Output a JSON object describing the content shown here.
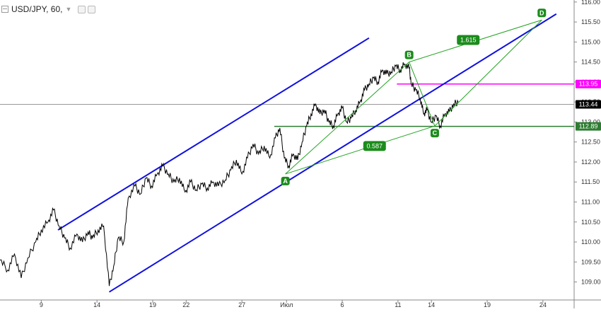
{
  "header": {
    "symbol_label": "USD/JPY, 60,"
  },
  "colors": {
    "price": "#000000",
    "channel": "#1010e0",
    "harmonic": "#22a322",
    "resistance": "#ff00ff",
    "support": "#2e7d32",
    "current": "#999999",
    "point_badge": "#1b8c1b"
  },
  "chart_data": {
    "type": "line",
    "title": "USD/JPY, 60,",
    "ylim": [
      108.55,
      116.05
    ],
    "y_ticks": [
      109.0,
      109.5,
      110.0,
      110.5,
      111.0,
      111.5,
      112.0,
      112.5,
      113.0,
      113.5,
      114.0,
      114.5,
      115.0,
      115.5,
      116.0
    ],
    "y_tick_labels": [
      "109.00",
      "109.50",
      "110.00",
      "110.50",
      "111.00",
      "111.50",
      "112.00",
      "112.50",
      "113.00",
      "113.50",
      "114.00",
      "114.50",
      "115.00",
      "115.50",
      "116.00"
    ],
    "x_tick_labels": [
      {
        "label": "9",
        "day": 9
      },
      {
        "label": "14",
        "day": 14
      },
      {
        "label": "19",
        "day": 19
      },
      {
        "label": "22",
        "day": 22
      },
      {
        "label": "27",
        "day": 27
      },
      {
        "label": "Июл",
        "day": 31
      },
      {
        "label": "6",
        "day": 36
      },
      {
        "label": "11",
        "day": 41
      },
      {
        "label": "14",
        "day": 44
      },
      {
        "label": "19",
        "day": 49
      },
      {
        "label": "24",
        "day": 54
      }
    ],
    "xlim": [
      5.3,
      56.8
    ],
    "series": [
      {
        "points": [
          [
            5.3,
            109.55
          ],
          [
            6.0,
            109.3
          ],
          [
            6.6,
            109.7
          ],
          [
            7.2,
            109.1
          ],
          [
            7.8,
            109.6
          ],
          [
            8.5,
            110.0
          ],
          [
            9.0,
            110.3
          ],
          [
            9.6,
            110.5
          ],
          [
            10.1,
            110.8
          ],
          [
            10.6,
            110.4
          ],
          [
            11.1,
            110.1
          ],
          [
            11.6,
            109.85
          ],
          [
            12.2,
            110.2
          ],
          [
            12.7,
            110.0
          ],
          [
            13.2,
            110.25
          ],
          [
            13.6,
            110.1
          ],
          [
            14.1,
            110.3
          ],
          [
            14.6,
            110.4
          ],
          [
            15.1,
            108.9
          ],
          [
            15.5,
            109.4
          ],
          [
            15.9,
            110.1
          ],
          [
            16.4,
            110.0
          ],
          [
            16.8,
            111.1
          ],
          [
            17.4,
            111.4
          ],
          [
            17.9,
            111.2
          ],
          [
            18.4,
            111.6
          ],
          [
            18.9,
            111.4
          ],
          [
            19.4,
            111.7
          ],
          [
            19.9,
            111.9
          ],
          [
            20.4,
            111.7
          ],
          [
            20.9,
            111.5
          ],
          [
            21.4,
            111.6
          ],
          [
            21.9,
            111.25
          ],
          [
            22.4,
            111.5
          ],
          [
            22.9,
            111.3
          ],
          [
            23.4,
            111.45
          ],
          [
            23.9,
            111.35
          ],
          [
            24.4,
            111.5
          ],
          [
            24.9,
            111.4
          ],
          [
            25.5,
            111.55
          ],
          [
            26.0,
            111.8
          ],
          [
            26.5,
            112.05
          ],
          [
            27.0,
            111.7
          ],
          [
            27.5,
            112.1
          ],
          [
            28.0,
            112.45
          ],
          [
            28.5,
            112.2
          ],
          [
            29.0,
            112.4
          ],
          [
            29.5,
            112.1
          ],
          [
            30.0,
            112.6
          ],
          [
            30.4,
            112.85
          ],
          [
            30.8,
            112.1
          ],
          [
            31.2,
            111.9
          ],
          [
            31.6,
            112.2
          ],
          [
            32.0,
            112.05
          ],
          [
            32.4,
            112.5
          ],
          [
            32.8,
            112.9
          ],
          [
            33.2,
            113.2
          ],
          [
            33.6,
            113.45
          ],
          [
            34.0,
            113.2
          ],
          [
            34.4,
            113.3
          ],
          [
            34.8,
            113.0
          ],
          [
            35.2,
            112.9
          ],
          [
            35.6,
            113.2
          ],
          [
            36.0,
            113.35
          ],
          [
            36.4,
            113.0
          ],
          [
            36.8,
            113.1
          ],
          [
            37.2,
            113.3
          ],
          [
            37.6,
            113.5
          ],
          [
            38.0,
            113.8
          ],
          [
            38.4,
            113.95
          ],
          [
            38.8,
            114.1
          ],
          [
            39.2,
            114.0
          ],
          [
            39.6,
            114.3
          ],
          [
            40.0,
            114.2
          ],
          [
            40.4,
            114.25
          ],
          [
            40.8,
            114.4
          ],
          [
            41.2,
            114.3
          ],
          [
            41.6,
            114.45
          ],
          [
            42.0,
            114.35
          ],
          [
            42.2,
            113.95
          ],
          [
            42.6,
            113.8
          ],
          [
            43.0,
            113.6
          ],
          [
            43.3,
            113.2
          ],
          [
            43.6,
            113.3
          ],
          [
            44.0,
            113.0
          ],
          [
            44.4,
            113.15
          ],
          [
            44.8,
            112.9
          ],
          [
            45.2,
            113.2
          ],
          [
            45.6,
            113.25
          ],
          [
            46.0,
            113.45
          ],
          [
            46.4,
            113.5
          ]
        ]
      }
    ],
    "channel_lines": [
      {
        "from": [
          15.1,
          108.75
        ],
        "to": [
          55.2,
          115.7
        ]
      },
      {
        "from": [
          10.5,
          110.3
        ],
        "to": [
          38.4,
          115.1
        ]
      }
    ],
    "harmonic_points": [
      {
        "label": "A",
        "x": 30.9,
        "y": 111.7
      },
      {
        "label": "B",
        "x": 42.0,
        "y": 114.5
      },
      {
        "label": "C",
        "x": 44.3,
        "y": 112.9
      },
      {
        "label": "D",
        "x": 53.9,
        "y": 115.55
      }
    ],
    "harmonic_ratios": [
      {
        "label": "1.615",
        "x": 47.3,
        "y": 115.05
      },
      {
        "label": "0.587",
        "x": 38.9,
        "y": 112.4
      }
    ],
    "horizontal_levels": [
      {
        "value": 113.95,
        "label": "113.95",
        "color": "#ff00ff",
        "from_x": 40.9
      },
      {
        "value": 112.89,
        "label": "112.89",
        "color": "#2e7d32",
        "from_x": 29.9
      },
      {
        "value": 113.44,
        "label": "113.44",
        "color": "#999999",
        "from_x": 5.3
      }
    ]
  }
}
